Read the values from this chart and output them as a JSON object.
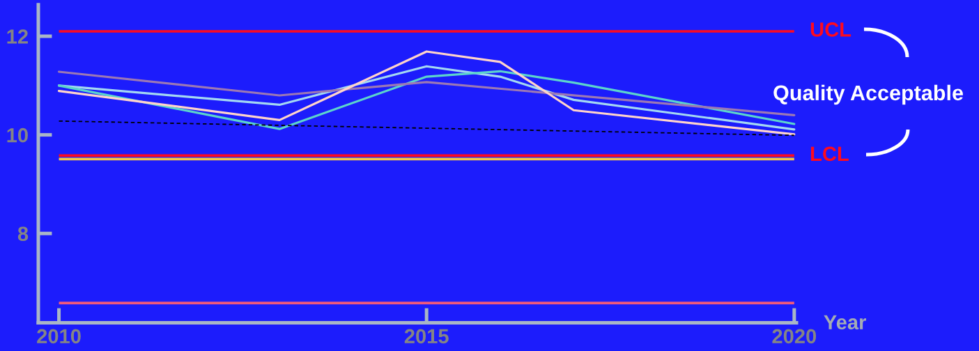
{
  "chart_data": {
    "type": "line",
    "xlabel": "Year",
    "annotations": [
      "Quality Acceptable"
    ],
    "xlim": [
      2009.72,
      2020.03
    ],
    "xticks": [
      2010,
      2015,
      2020
    ],
    "ylim": [
      6.19,
      12.64
    ],
    "yticks": [
      8,
      10,
      12
    ],
    "series": [
      {
        "color": "#a4d8f2",
        "x": [
          2010,
          2013,
          2015,
          2016,
          2017,
          2020
        ],
        "values": [
          11.0,
          10.61,
          11.39,
          11.18,
          10.71,
          10.11
        ]
      },
      {
        "color": "#5cd4cc",
        "x": [
          2010,
          2013,
          2015,
          2016,
          2017,
          2020
        ],
        "values": [
          11.0,
          10.12,
          11.18,
          11.29,
          11.06,
          10.22
        ]
      },
      {
        "color": "#9c78b4",
        "x": [
          2010,
          2013,
          2015,
          2020
        ],
        "values": [
          11.28,
          10.8,
          11.07,
          10.4
        ]
      },
      {
        "color": "#ffd4ca",
        "x": [
          2010,
          2013,
          2015,
          2016,
          2017,
          2020
        ],
        "values": [
          10.89,
          10.3,
          11.69,
          11.48,
          10.5,
          10.01
        ]
      },
      {
        "type": "line",
        "color": "#000000",
        "line_style": "dashed",
        "x": [
          2010,
          2020
        ],
        "values": [
          10.28,
          9.99
        ]
      }
    ],
    "ref_lines": [
      {
        "axis": "y",
        "value": 12.1,
        "label": "UCL",
        "color": "#ff0a1e"
      },
      {
        "axis": "y",
        "value": 9.58,
        "label": "LCL",
        "color": "#ff0a1e"
      },
      {
        "axis": "y",
        "value": 9.51,
        "color": "#f2c84a"
      },
      {
        "axis": "y",
        "value": 6.59,
        "color": "#f25a7a"
      }
    ]
  }
}
